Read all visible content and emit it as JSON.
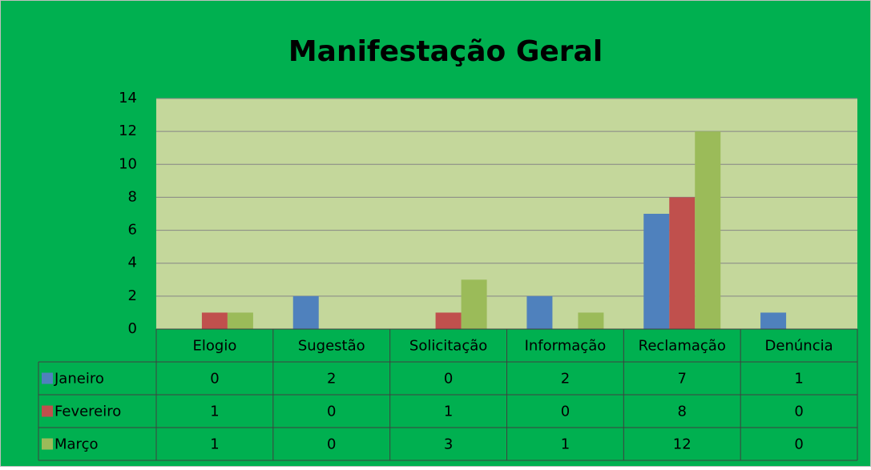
{
  "chart_data": {
    "type": "bar",
    "title": "Manifestação Geral",
    "categories": [
      "Elogio",
      "Sugestão",
      "Solicitação",
      "Informação",
      "Reclamação",
      "Denúncia"
    ],
    "series": [
      {
        "name": "Janeiro",
        "color": "#4f81bd",
        "values": [
          0,
          2,
          0,
          2,
          7,
          1
        ]
      },
      {
        "name": "Fevereiro",
        "color": "#c0504d",
        "values": [
          1,
          0,
          1,
          0,
          8,
          0
        ]
      },
      {
        "name": "Março",
        "color": "#9bbb59",
        "values": [
          1,
          0,
          3,
          1,
          12,
          0
        ]
      }
    ],
    "ylim": [
      0,
      14
    ],
    "yticks": [
      0,
      2,
      4,
      6,
      8,
      10,
      12,
      14
    ],
    "grid": true
  }
}
